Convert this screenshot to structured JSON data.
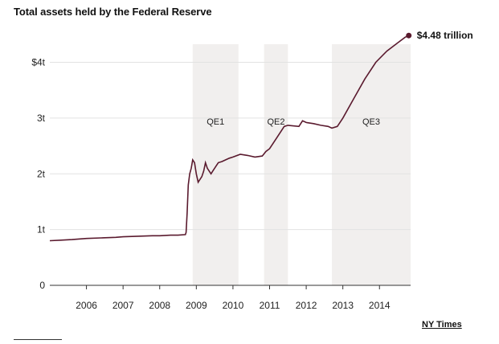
{
  "chart_data": {
    "type": "line",
    "title": "Total assets held by the Federal Reserve",
    "xlabel": "",
    "ylabel": "",
    "xlim": [
      2005.0,
      2014.85
    ],
    "ylim": [
      0,
      4.8
    ],
    "x_ticks": [
      {
        "value": 2006,
        "label": "2006"
      },
      {
        "value": 2007,
        "label": "2007"
      },
      {
        "value": 2008,
        "label": "2008"
      },
      {
        "value": 2009,
        "label": "2009"
      },
      {
        "value": 2010,
        "label": "2010"
      },
      {
        "value": 2011,
        "label": "2011"
      },
      {
        "value": 2012,
        "label": "2012"
      },
      {
        "value": 2013,
        "label": "2013"
      },
      {
        "value": 2014,
        "label": "2014"
      }
    ],
    "y_ticks": [
      {
        "value": 0,
        "label": "0"
      },
      {
        "value": 1,
        "label": "1t"
      },
      {
        "value": 2,
        "label": "2t"
      },
      {
        "value": 3,
        "label": "3t"
      },
      {
        "value": 4,
        "label": "$4t"
      }
    ],
    "grid": "horizontal",
    "bands": [
      {
        "label": "QE1",
        "start": 2008.9,
        "end": 2010.15
      },
      {
        "label": "QE2",
        "start": 2010.85,
        "end": 2011.5
      },
      {
        "label": "QE3",
        "start": 2012.7,
        "end": 2014.85
      }
    ],
    "series": [
      {
        "name": "",
        "color": "#5a1a2e",
        "x": [
          2005.0,
          2005.3,
          2005.6,
          2006.0,
          2006.4,
          2006.8,
          2007.0,
          2007.4,
          2007.8,
          2008.0,
          2008.3,
          2008.5,
          2008.7,
          2008.72,
          2008.75,
          2008.78,
          2008.82,
          2008.86,
          2008.9,
          2008.95,
          2009.0,
          2009.05,
          2009.1,
          2009.15,
          2009.2,
          2009.25,
          2009.3,
          2009.35,
          2009.4,
          2009.45,
          2009.5,
          2009.55,
          2009.6,
          2009.7,
          2009.8,
          2009.9,
          2010.0,
          2010.2,
          2010.4,
          2010.6,
          2010.8,
          2010.9,
          2011.0,
          2011.2,
          2011.4,
          2011.5,
          2011.8,
          2011.9,
          2012.0,
          2012.2,
          2012.4,
          2012.6,
          2012.7,
          2012.85,
          2013.0,
          2013.3,
          2013.6,
          2013.9,
          2014.2,
          2014.5,
          2014.7,
          2014.8
        ],
        "y": [
          0.8,
          0.81,
          0.82,
          0.84,
          0.85,
          0.86,
          0.87,
          0.88,
          0.89,
          0.89,
          0.9,
          0.9,
          0.91,
          0.95,
          1.3,
          1.8,
          2.0,
          2.1,
          2.25,
          2.2,
          2.0,
          1.85,
          1.9,
          1.95,
          2.05,
          2.2,
          2.1,
          2.05,
          2.0,
          2.05,
          2.1,
          2.15,
          2.2,
          2.22,
          2.25,
          2.28,
          2.3,
          2.35,
          2.33,
          2.3,
          2.32,
          2.4,
          2.45,
          2.65,
          2.85,
          2.87,
          2.85,
          2.95,
          2.92,
          2.9,
          2.87,
          2.85,
          2.82,
          2.85,
          3.0,
          3.35,
          3.7,
          4.0,
          4.2,
          4.35,
          4.45,
          4.48
        ]
      }
    ],
    "annotations": [
      {
        "text": "$4.48 trillion",
        "x": 2014.8,
        "y": 4.48
      }
    ]
  },
  "credit": "NY Times"
}
